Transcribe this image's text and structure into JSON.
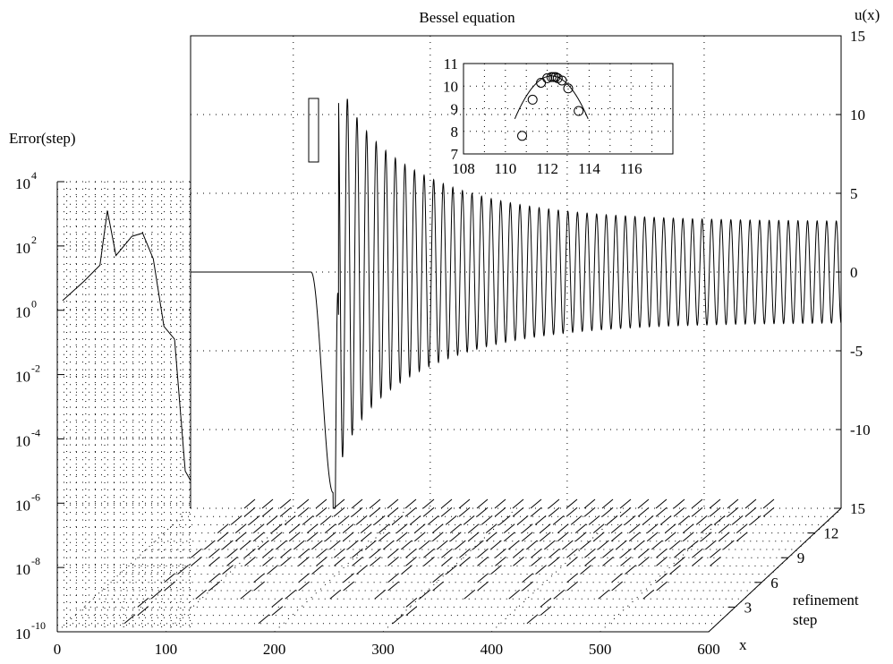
{
  "chart_data": [
    {
      "type": "line",
      "panel": "main",
      "title": "Bessel equation",
      "ylabel": "u(x)",
      "xlabel": "x",
      "xlim": [
        0,
        600
      ],
      "ylim": [
        -15,
        15
      ],
      "x_ticks": [
        0,
        100,
        200,
        300,
        400,
        500,
        600
      ],
      "y_ticks": [
        -10,
        -5,
        0,
        5,
        10,
        15
      ],
      "grid": true,
      "series": [
        {
          "description_points": {
            "x": [
              125,
              210,
              215,
              222,
              226,
              230,
              235,
              238,
              245,
              300,
              400,
              500,
              600
            ],
            "y": [
              0,
              0,
              -1,
              -10,
              -14,
              -5,
              7,
              11,
              9.5,
              5.5,
              4.2,
              3.6,
              3.2
            ]
          }
        }
      ]
    },
    {
      "type": "scatter",
      "panel": "inset",
      "xlim": [
        108,
        118
      ],
      "ylim": [
        7,
        11
      ],
      "x_ticks": [
        108,
        110,
        112,
        114,
        116
      ],
      "y_ticks": [
        7,
        8,
        9,
        10,
        11
      ],
      "grid": true,
      "series": [
        {
          "x": [
            110.8,
            111.3,
            111.7,
            112.0,
            112.2,
            112.3,
            112.4,
            112.5,
            112.7,
            113.0,
            113.5
          ],
          "y": [
            7.8,
            9.4,
            10.15,
            10.35,
            10.4,
            10.4,
            10.4,
            10.35,
            10.25,
            9.9,
            8.9
          ]
        }
      ]
    },
    {
      "type": "line",
      "panel": "error",
      "ylabel": "Error(step)",
      "yscale": "log",
      "xlim": [
        0,
        125
      ],
      "ylim_exponent": [
        -10,
        4
      ],
      "y_ticks_exponent": [
        -10,
        -8,
        -6,
        -4,
        -2,
        0,
        2,
        4
      ],
      "series": [
        {
          "x": [
            5,
            25,
            40,
            47,
            55,
            70,
            80,
            90,
            100,
            110,
            120,
            125
          ],
          "log10_y": [
            0.3,
            0.9,
            1.4,
            3.1,
            1.7,
            2.3,
            2.4,
            1.6,
            -0.5,
            -0.9,
            -5.0,
            -5.3
          ]
        }
      ]
    },
    {
      "type": "line",
      "panel": "floor",
      "ylabel": "refinement step",
      "y_ticks": [
        3,
        6,
        9,
        12,
        15
      ],
      "ylim": [
        0,
        15
      ]
    }
  ],
  "labels": {
    "title": "Bessel equation",
    "u_axis": "u(x)",
    "error_axis": "Error(step)",
    "x_axis": "x",
    "refine_line1": "refinement",
    "refine_line2": "step",
    "log_base": "10"
  }
}
